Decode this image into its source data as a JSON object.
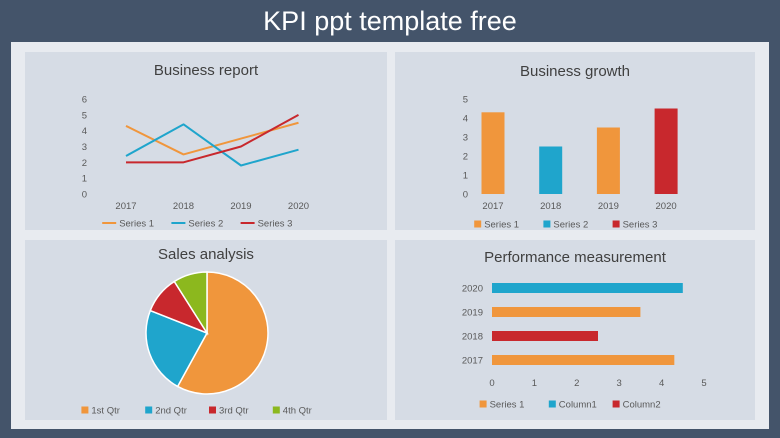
{
  "page": {
    "title": "KPI ppt template free"
  },
  "chart_data": [
    {
      "type": "line",
      "title": "Business report",
      "categories": [
        "2017",
        "2018",
        "2019",
        "2020"
      ],
      "ylim": [
        0,
        6
      ],
      "yticks": [
        "0",
        "1",
        "2",
        "3",
        "4",
        "5",
        "6"
      ],
      "grid": false,
      "legend": "bottom",
      "series": [
        {
          "name": "Series 1",
          "color": "#f0963c",
          "values": [
            4.3,
            2.5,
            3.5,
            4.5
          ]
        },
        {
          "name": "Series 2",
          "color": "#1fa5cc",
          "values": [
            2.4,
            4.4,
            1.8,
            2.8
          ]
        },
        {
          "name": "Series 3",
          "color": "#c8282d",
          "values": [
            2.0,
            2.0,
            3.0,
            5.0
          ]
        }
      ]
    },
    {
      "type": "bar",
      "title": "Business growth",
      "categories": [
        "2017",
        "2018",
        "2019",
        "2020"
      ],
      "ylim": [
        0,
        5
      ],
      "yticks": [
        "0",
        "1",
        "2",
        "3",
        "4",
        "5"
      ],
      "grid": false,
      "legend": "bottom",
      "series": [
        {
          "name": "Series 1",
          "color": "#f0963c"
        },
        {
          "name": "Series 2",
          "color": "#1fa5cc"
        },
        {
          "name": "Series 3",
          "color": "#c8282d"
        }
      ],
      "bars": [
        {
          "category": "2017",
          "value": 4.3,
          "color": "#f0963c"
        },
        {
          "category": "2018",
          "value": 2.5,
          "color": "#1fa5cc"
        },
        {
          "category": "2019",
          "value": 3.5,
          "color": "#f0963c"
        },
        {
          "category": "2020",
          "value": 4.5,
          "color": "#c8282d"
        }
      ]
    },
    {
      "type": "pie",
      "title": "Sales analysis",
      "legend": "bottom",
      "slices": [
        {
          "label": "1st Qtr",
          "value": 58,
          "color": "#f0963c"
        },
        {
          "label": "2nd Qtr",
          "value": 23,
          "color": "#1fa5cc"
        },
        {
          "label": "3rd Qtr",
          "value": 10,
          "color": "#c8282d"
        },
        {
          "label": "4th Qtr",
          "value": 9,
          "color": "#8cb81e"
        }
      ]
    },
    {
      "type": "bar",
      "orientation": "horizontal",
      "title": "Performance measurement",
      "categories": [
        "2020",
        "2019",
        "2018",
        "2017"
      ],
      "xlim": [
        0,
        5
      ],
      "xticks": [
        "0",
        "1",
        "2",
        "3",
        "4",
        "5"
      ],
      "grid": false,
      "legend": "bottom",
      "series": [
        {
          "name": "Series 1",
          "color": "#f0963c"
        },
        {
          "name": "Column1",
          "color": "#1fa5cc"
        },
        {
          "name": "Column2",
          "color": "#c8282d"
        }
      ],
      "bars": [
        {
          "category": "2020",
          "value": 4.5,
          "color": "#1fa5cc"
        },
        {
          "category": "2019",
          "value": 3.5,
          "color": "#f0963c"
        },
        {
          "category": "2018",
          "value": 2.5,
          "color": "#c8282d"
        },
        {
          "category": "2017",
          "value": 4.3,
          "color": "#f0963c"
        }
      ]
    }
  ]
}
